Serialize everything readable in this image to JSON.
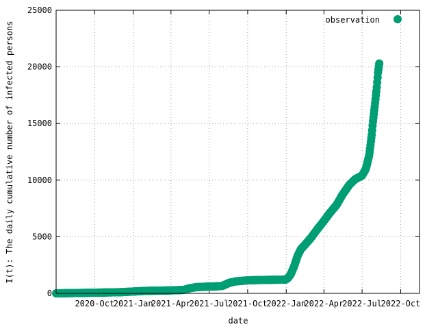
{
  "chart_data": {
    "type": "scatter",
    "xlabel": "date",
    "ylabel": "I(t): The daily cumulative number of infected persons",
    "xlim": [
      "2020-07-01",
      "2022-11-15"
    ],
    "ylim": [
      0,
      25000
    ],
    "x_ticks": [
      {
        "date": "2020-10-01",
        "label": "2020-Oct"
      },
      {
        "date": "2021-01-01",
        "label": "2021-Jan"
      },
      {
        "date": "2021-04-01",
        "label": "2021-Apr"
      },
      {
        "date": "2021-07-01",
        "label": "2021-Jul"
      },
      {
        "date": "2021-10-01",
        "label": "2021-Oct"
      },
      {
        "date": "2022-01-01",
        "label": "2022-Jan"
      },
      {
        "date": "2022-04-01",
        "label": "2022-Apr"
      },
      {
        "date": "2022-07-01",
        "label": "2022-Jul"
      },
      {
        "date": "2022-10-01",
        "label": "2022-Oct"
      }
    ],
    "y_ticks": [
      0,
      5000,
      10000,
      15000,
      20000,
      25000
    ],
    "grid": true,
    "legend_position": "top-right",
    "series": [
      {
        "name": "observation",
        "color": "#009e73",
        "points": [
          [
            "2020-07-01",
            0
          ],
          [
            "2020-08-01",
            20
          ],
          [
            "2020-09-01",
            40
          ],
          [
            "2020-10-01",
            60
          ],
          [
            "2020-11-01",
            80
          ],
          [
            "2020-12-01",
            100
          ],
          [
            "2021-01-01",
            160
          ],
          [
            "2021-02-01",
            220
          ],
          [
            "2021-03-01",
            240
          ],
          [
            "2021-04-01",
            260
          ],
          [
            "2021-05-01",
            300
          ],
          [
            "2021-05-15",
            450
          ],
          [
            "2021-06-01",
            550
          ],
          [
            "2021-07-01",
            600
          ],
          [
            "2021-07-20",
            620
          ],
          [
            "2021-08-01",
            650
          ],
          [
            "2021-08-10",
            800
          ],
          [
            "2021-08-20",
            950
          ],
          [
            "2021-09-01",
            1050
          ],
          [
            "2021-10-01",
            1150
          ],
          [
            "2021-11-01",
            1180
          ],
          [
            "2021-12-01",
            1200
          ],
          [
            "2021-12-31",
            1220
          ],
          [
            "2022-01-05",
            1350
          ],
          [
            "2022-01-12",
            1700
          ],
          [
            "2022-01-20",
            2400
          ],
          [
            "2022-01-28",
            3300
          ],
          [
            "2022-02-05",
            3900
          ],
          [
            "2022-02-15",
            4300
          ],
          [
            "2022-03-01",
            4900
          ],
          [
            "2022-03-15",
            5600
          ],
          [
            "2022-04-01",
            6400
          ],
          [
            "2022-04-15",
            7100
          ],
          [
            "2022-05-01",
            7800
          ],
          [
            "2022-05-15",
            8700
          ],
          [
            "2022-06-01",
            9600
          ],
          [
            "2022-06-15",
            10100
          ],
          [
            "2022-07-01",
            10400
          ],
          [
            "2022-07-10",
            11000
          ],
          [
            "2022-07-18",
            12200
          ],
          [
            "2022-07-24",
            14000
          ],
          [
            "2022-07-27",
            15200
          ],
          [
            "2022-08-01",
            16800
          ],
          [
            "2022-08-05",
            18200
          ],
          [
            "2022-08-08",
            19500
          ],
          [
            "2022-08-11",
            20300
          ]
        ]
      }
    ]
  }
}
